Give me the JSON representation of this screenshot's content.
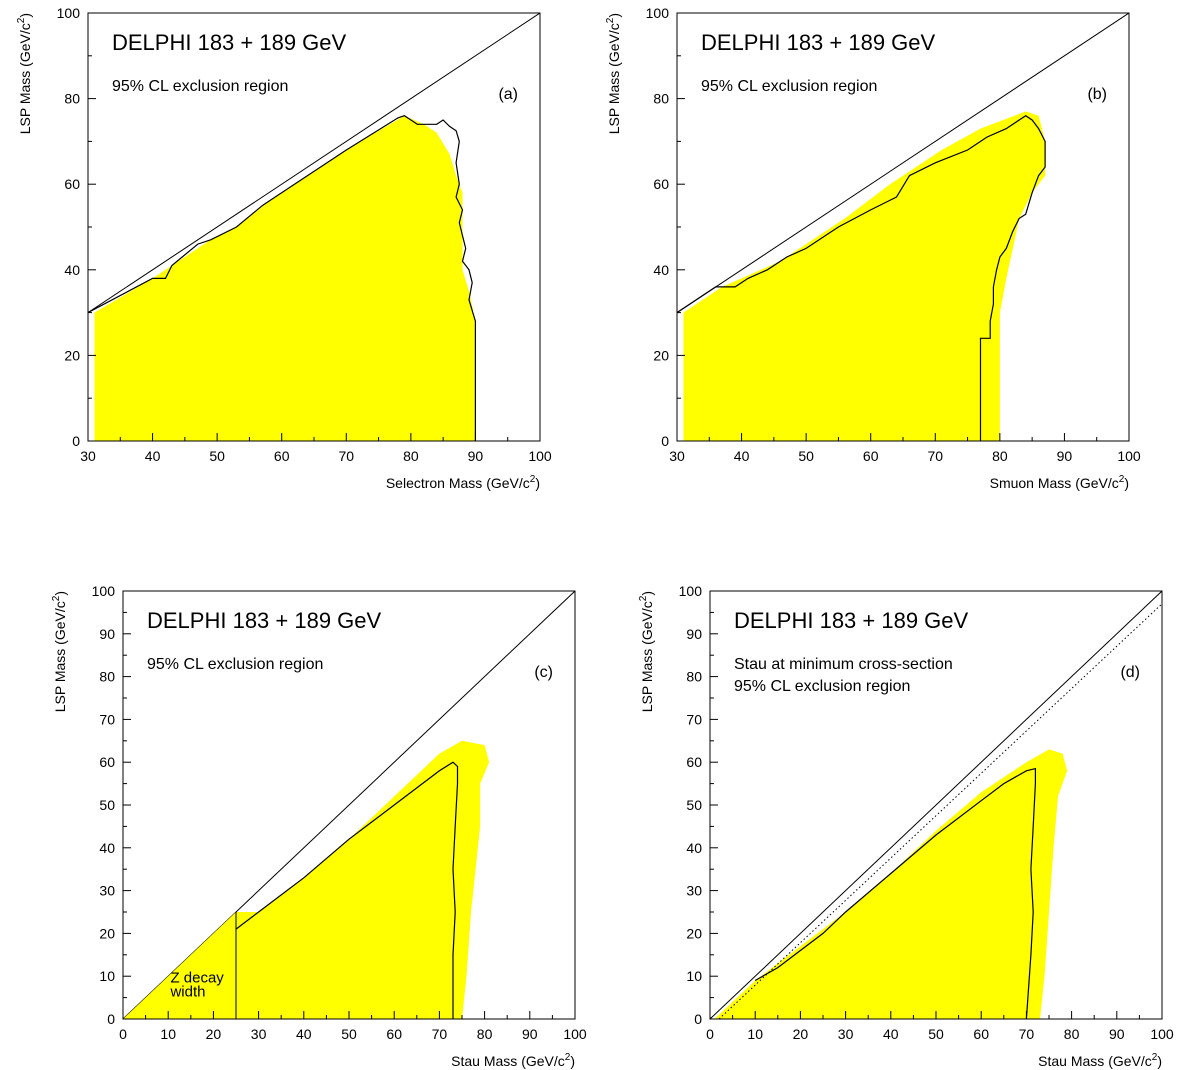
{
  "colors": {
    "excluded_fill": "#ffff00",
    "frame": "#000000"
  },
  "chart_data": [
    {
      "type": "area",
      "panel_label": "(a)",
      "title": "DELPHI 183 + 189 GeV",
      "subtitle_lines": [
        "95% CL exclusion region"
      ],
      "xlabel": "Selectron Mass (GeV/c",
      "ylabel": "LSP Mass (GeV/c",
      "xlim": [
        30,
        100
      ],
      "ylim": [
        0,
        100
      ],
      "xticks": [
        "30",
        "40",
        "50",
        "60",
        "70",
        "80",
        "90",
        "100"
      ],
      "yticks": [
        "0",
        "20",
        "40",
        "60",
        "80",
        "100"
      ],
      "kinematic_limit": [
        [
          30,
          30
        ],
        [
          100,
          100
        ]
      ],
      "excluded_region": [
        [
          31,
          0
        ],
        [
          31,
          30
        ],
        [
          40,
          38
        ],
        [
          43,
          41
        ],
        [
          49,
          47
        ],
        [
          53,
          50
        ],
        [
          58,
          56
        ],
        [
          63,
          61
        ],
        [
          70,
          68
        ],
        [
          79,
          76
        ],
        [
          82,
          74
        ],
        [
          84,
          72
        ],
        [
          86,
          67
        ],
        [
          87,
          62
        ],
        [
          88,
          58
        ],
        [
          88,
          40
        ],
        [
          89,
          35
        ],
        [
          90,
          28
        ],
        [
          90,
          0
        ]
      ],
      "limit_contour": [
        [
          30,
          30
        ],
        [
          40,
          38
        ],
        [
          42,
          38
        ],
        [
          43,
          41
        ],
        [
          47,
          46
        ],
        [
          49,
          47
        ],
        [
          53,
          50
        ],
        [
          57,
          55
        ],
        [
          58,
          56
        ],
        [
          63,
          61
        ],
        [
          70,
          68
        ],
        [
          78,
          75.5
        ],
        [
          79,
          76
        ],
        [
          80,
          75
        ],
        [
          81,
          74
        ],
        [
          84,
          74
        ],
        [
          85,
          75
        ],
        [
          86,
          73.5
        ],
        [
          87,
          72.5
        ],
        [
          87.5,
          70
        ],
        [
          87,
          65
        ],
        [
          87.5,
          60
        ],
        [
          87,
          57
        ],
        [
          88,
          54
        ],
        [
          87.5,
          51
        ],
        [
          88,
          48
        ],
        [
          88.5,
          45
        ],
        [
          88,
          42
        ],
        [
          89,
          40
        ],
        [
          89.5,
          37
        ],
        [
          89,
          33
        ],
        [
          90,
          28
        ],
        [
          90,
          0
        ]
      ]
    },
    {
      "type": "area",
      "panel_label": "(b)",
      "title": "DELPHI 183 + 189 GeV",
      "subtitle_lines": [
        "95% CL exclusion region"
      ],
      "xlabel": "Smuon Mass (GeV/c",
      "ylabel": "LSP Mass (GeV/c",
      "xlim": [
        30,
        100
      ],
      "ylim": [
        0,
        100
      ],
      "xticks": [
        "30",
        "40",
        "50",
        "60",
        "70",
        "80",
        "90",
        "100"
      ],
      "yticks": [
        "0",
        "20",
        "40",
        "60",
        "80",
        "100"
      ],
      "kinematic_limit": [
        [
          30,
          30
        ],
        [
          100,
          100
        ]
      ],
      "excluded_region": [
        [
          31,
          0
        ],
        [
          31,
          30
        ],
        [
          37,
          36
        ],
        [
          46,
          42
        ],
        [
          56,
          52
        ],
        [
          63,
          60
        ],
        [
          71,
          68
        ],
        [
          77,
          73
        ],
        [
          84,
          77
        ],
        [
          86,
          76
        ],
        [
          87,
          70
        ],
        [
          87,
          62
        ],
        [
          85,
          58
        ],
        [
          83,
          52
        ],
        [
          82,
          45
        ],
        [
          81,
          38
        ],
        [
          80,
          30
        ],
        [
          80,
          0
        ]
      ],
      "limit_contour": [
        [
          30,
          30
        ],
        [
          36,
          36
        ],
        [
          39,
          36
        ],
        [
          41,
          38
        ],
        [
          44,
          40
        ],
        [
          47,
          43
        ],
        [
          50,
          45
        ],
        [
          55,
          50
        ],
        [
          60,
          54
        ],
        [
          64,
          57
        ],
        [
          66,
          62
        ],
        [
          70,
          65
        ],
        [
          75,
          68
        ],
        [
          78,
          71
        ],
        [
          81,
          73
        ],
        [
          84,
          76
        ],
        [
          85,
          75
        ],
        [
          86,
          73
        ],
        [
          87,
          70
        ],
        [
          87,
          64
        ],
        [
          86,
          62
        ],
        [
          85,
          58
        ],
        [
          84,
          53
        ],
        [
          83,
          52
        ],
        [
          82,
          49
        ],
        [
          81,
          45
        ],
        [
          80,
          43
        ],
        [
          79.5,
          40
        ],
        [
          79,
          36
        ],
        [
          79,
          32
        ],
        [
          78.5,
          28
        ],
        [
          78.5,
          24
        ],
        [
          77,
          24
        ],
        [
          77,
          0
        ]
      ]
    },
    {
      "type": "area",
      "panel_label": "(c)",
      "title": "DELPHI 183 + 189 GeV",
      "subtitle_lines": [
        "95% CL exclusion region"
      ],
      "annotation_lines": [
        "Z decay",
        "width"
      ],
      "xlabel": "Stau Mass (GeV/c",
      "ylabel": "LSP Mass (GeV/c",
      "xlim": [
        0,
        100
      ],
      "ylim": [
        0,
        100
      ],
      "xticks": [
        "0",
        "10",
        "20",
        "30",
        "40",
        "50",
        "60",
        "70",
        "80",
        "90",
        "100"
      ],
      "yticks": [
        "0",
        "10",
        "20",
        "30",
        "40",
        "50",
        "60",
        "70",
        "80",
        "90",
        "100"
      ],
      "kinematic_limit": [
        [
          0,
          0
        ],
        [
          100,
          100
        ]
      ],
      "z_width_edge": 25,
      "excluded_region": [
        [
          0,
          0
        ],
        [
          25,
          25
        ],
        [
          30,
          25
        ],
        [
          40,
          33
        ],
        [
          50,
          42
        ],
        [
          60,
          52
        ],
        [
          70,
          62
        ],
        [
          75,
          65
        ],
        [
          80,
          64
        ],
        [
          81,
          60
        ],
        [
          79,
          55
        ],
        [
          79,
          45
        ],
        [
          78,
          35
        ],
        [
          77,
          25
        ],
        [
          76,
          10
        ],
        [
          75,
          0
        ]
      ],
      "limit_contour": [
        [
          25,
          21
        ],
        [
          30,
          25
        ],
        [
          40,
          33
        ],
        [
          50,
          42
        ],
        [
          55,
          46
        ],
        [
          60,
          50
        ],
        [
          65,
          54
        ],
        [
          70,
          58
        ],
        [
          73,
          60
        ],
        [
          74,
          59
        ],
        [
          74,
          55
        ],
        [
          73.5,
          45
        ],
        [
          73,
          35
        ],
        [
          73.5,
          25
        ],
        [
          73,
          15
        ],
        [
          73,
          0
        ]
      ]
    },
    {
      "type": "area",
      "panel_label": "(d)",
      "title": "DELPHI 183 + 189 GeV",
      "subtitle_lines": [
        "Stau at minimum cross-section",
        "95% CL exclusion region"
      ],
      "xlabel": "Stau Mass (GeV/c",
      "ylabel": "LSP Mass (GeV/c",
      "xlim": [
        0,
        100
      ],
      "ylim": [
        0,
        100
      ],
      "xticks": [
        "0",
        "10",
        "20",
        "30",
        "40",
        "50",
        "60",
        "70",
        "80",
        "90",
        "100"
      ],
      "yticks": [
        "0",
        "10",
        "20",
        "30",
        "40",
        "50",
        "60",
        "70",
        "80",
        "90",
        "100"
      ],
      "kinematic_limit": [
        [
          0,
          0
        ],
        [
          100,
          100
        ]
      ],
      "dotted_line": [
        [
          2,
          0
        ],
        [
          100,
          97
        ]
      ],
      "excluded_region": [
        [
          1,
          0
        ],
        [
          10,
          9
        ],
        [
          20,
          17
        ],
        [
          30,
          25
        ],
        [
          40,
          34
        ],
        [
          50,
          44
        ],
        [
          60,
          53
        ],
        [
          70,
          60
        ],
        [
          75,
          63
        ],
        [
          78,
          62
        ],
        [
          79,
          58
        ],
        [
          77,
          52
        ],
        [
          76,
          40
        ],
        [
          75,
          25
        ],
        [
          74,
          10
        ],
        [
          73,
          0
        ]
      ],
      "limit_contour": [
        [
          10,
          9
        ],
        [
          15,
          12
        ],
        [
          20,
          16
        ],
        [
          25,
          20
        ],
        [
          30,
          25
        ],
        [
          40,
          34
        ],
        [
          50,
          43
        ],
        [
          60,
          51
        ],
        [
          65,
          55
        ],
        [
          70,
          58
        ],
        [
          72,
          58.5
        ],
        [
          72,
          55
        ],
        [
          71.5,
          45
        ],
        [
          71,
          35
        ],
        [
          71.5,
          25
        ],
        [
          71,
          15
        ],
        [
          70,
          0
        ]
      ]
    }
  ]
}
